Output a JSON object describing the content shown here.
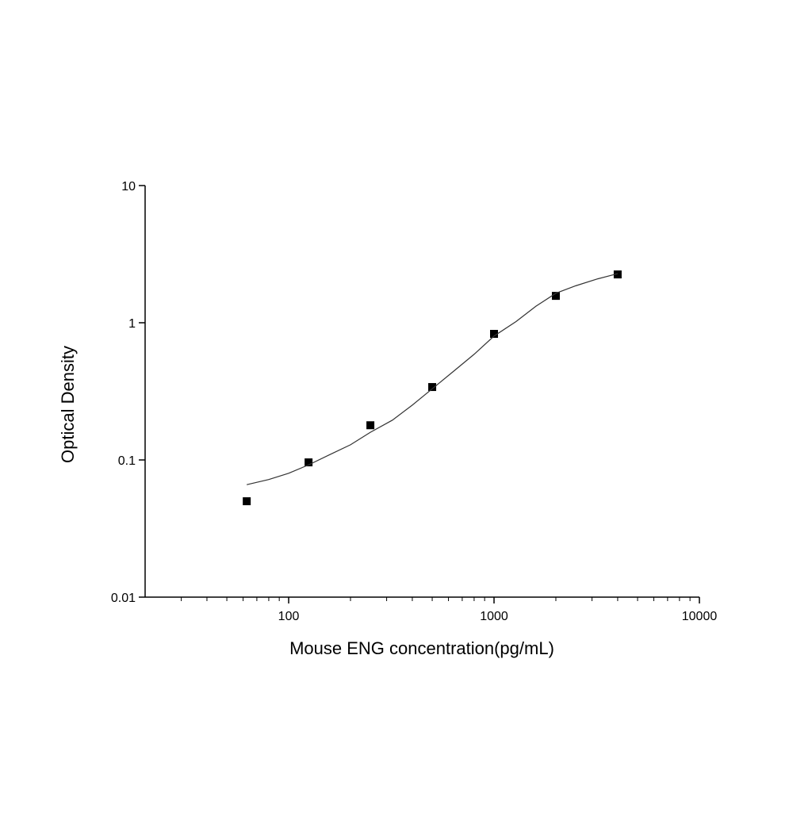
{
  "chart_data": {
    "type": "scatter",
    "x_label": "Mouse ENG concentration(pg/mL)",
    "y_label": "Optical Density",
    "x_log": true,
    "y_log": true,
    "xlim": [
      20,
      10000
    ],
    "ylim": [
      0.01,
      10
    ],
    "xticks": [
      100,
      1000,
      10000
    ],
    "xminorticks": [
      30,
      40,
      50,
      60,
      70,
      80,
      90,
      200,
      300,
      400,
      500,
      600,
      700,
      800,
      900,
      2000,
      3000,
      4000,
      5000,
      6000,
      7000,
      8000,
      9000
    ],
    "yticks": [
      0.01,
      0.1,
      1,
      10
    ],
    "series": [
      {
        "style": "markers",
        "marker": "square",
        "color": "#000000",
        "x": [
          62.5,
          125,
          250,
          500,
          1000,
          2000,
          4000
        ],
        "values": [
          0.05,
          0.096,
          0.179,
          0.34,
          0.83,
          1.57,
          2.25
        ]
      },
      {
        "style": "line",
        "color": "#333333",
        "x": [
          62.5,
          80,
          100,
          125,
          160,
          200,
          250,
          320,
          400,
          500,
          640,
          800,
          1000,
          1280,
          1600,
          2000,
          2500,
          3200,
          4000
        ],
        "values": [
          0.066,
          0.072,
          0.08,
          0.092,
          0.11,
          0.129,
          0.159,
          0.195,
          0.251,
          0.33,
          0.447,
          0.589,
          0.8,
          1.02,
          1.32,
          1.64,
          1.86,
          2.09,
          2.28
        ]
      }
    ]
  }
}
